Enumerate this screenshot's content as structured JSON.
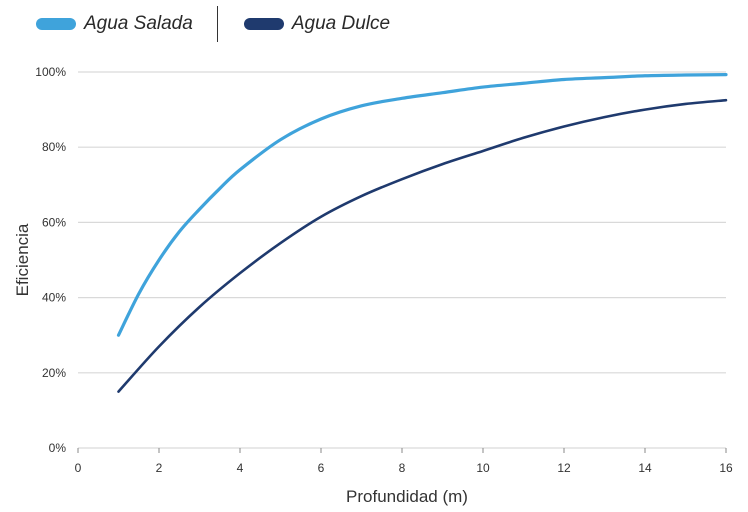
{
  "chart_data": {
    "type": "line",
    "xlabel": "Profundidad (m)",
    "ylabel": "Eficiencia",
    "xlim": [
      0,
      16
    ],
    "ylim": [
      0,
      100
    ],
    "x_ticks": [
      "0",
      "2",
      "4",
      "6",
      "8",
      "10",
      "12",
      "14",
      "16"
    ],
    "y_ticks": [
      "0%",
      "20%",
      "40%",
      "60%",
      "80%",
      "100%"
    ],
    "grid": "horizontal",
    "legend_position": "top-left",
    "series": [
      {
        "name": "Agua Salada",
        "color": "#3fa3db",
        "x": [
          1,
          1.5,
          2,
          2.5,
          3,
          3.5,
          4,
          5,
          6,
          7,
          8,
          9,
          10,
          11,
          12,
          13,
          14,
          15,
          16
        ],
        "values": [
          30,
          41,
          50,
          57.5,
          63.5,
          69,
          74,
          82,
          87.5,
          91,
          93,
          94.5,
          96,
          97,
          98,
          98.5,
          99,
          99.2,
          99.3
        ]
      },
      {
        "name": "Agua Dulce",
        "color": "#1f3a6e",
        "x": [
          1,
          2,
          3,
          4,
          5,
          6,
          7,
          8,
          9,
          10,
          11,
          12,
          13,
          14,
          15,
          16
        ],
        "values": [
          15,
          27,
          37.5,
          46.5,
          54.5,
          61.5,
          67,
          71.5,
          75.5,
          79,
          82.5,
          85.5,
          88,
          90,
          91.5,
          92.5
        ]
      }
    ]
  }
}
